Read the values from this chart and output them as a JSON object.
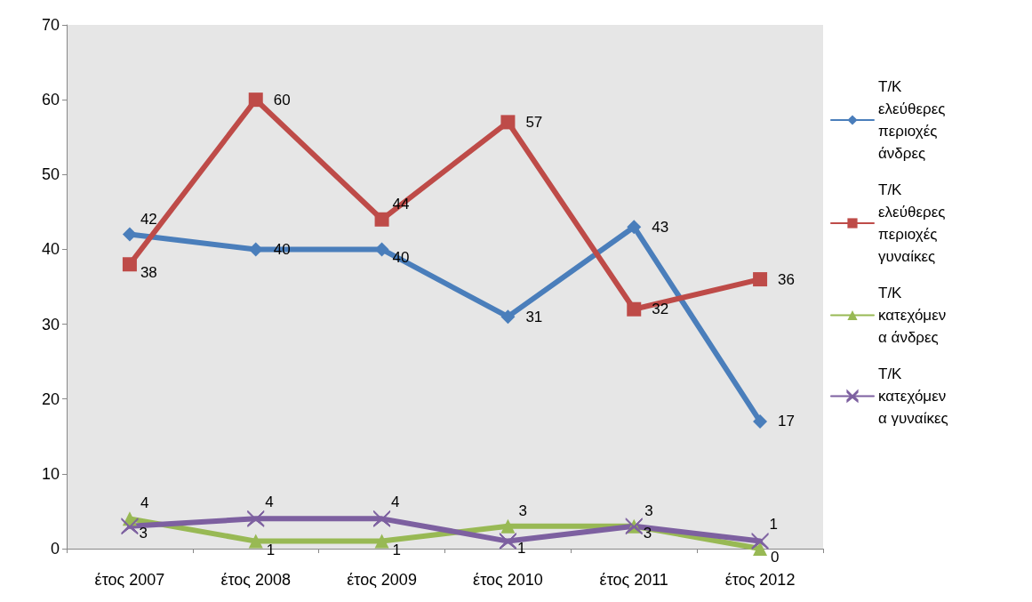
{
  "chart_data": {
    "type": "line",
    "categories": [
      "έτος 2007",
      "έτος 2008",
      "έτος 2009",
      "έτος 2010",
      "έτος 2011",
      "έτος 2012"
    ],
    "series": [
      {
        "name": "Τ/Κ ελεύθερες περιοχές άνδρες",
        "color": "#4a7ebb",
        "marker": "diamond",
        "values": [
          42,
          40,
          40,
          31,
          43,
          17
        ]
      },
      {
        "name": "Τ/Κ ελεύθερες περιοχές γυναίκες",
        "color": "#be4b48",
        "marker": "square",
        "values": [
          38,
          60,
          44,
          57,
          32,
          36
        ]
      },
      {
        "name": "Τ/Κ κατεχόμενα άνδρες",
        "color": "#98b954",
        "marker": "triangle",
        "values": [
          4,
          1,
          1,
          3,
          3,
          0
        ]
      },
      {
        "name": "Τ/Κ κατεχόμενα γυναίκες",
        "color": "#7d60a0",
        "marker": "cross",
        "values": [
          3,
          4,
          4,
          1,
          3,
          1
        ]
      }
    ],
    "ylim": [
      0,
      70
    ],
    "yticks": [
      0,
      10,
      20,
      30,
      40,
      50,
      60,
      70
    ],
    "grid": false,
    "legend": "right",
    "data_labels": true
  }
}
